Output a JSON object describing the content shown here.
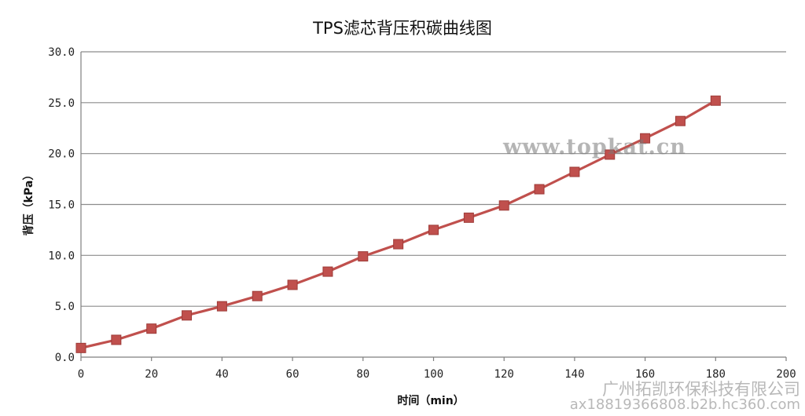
{
  "chart_data": {
    "type": "line",
    "title": "TPS滤芯背压积碳曲线图",
    "xlabel": "时间（min）",
    "ylabel": "背压（kPa）",
    "xlim": [
      0,
      200
    ],
    "ylim": [
      0,
      30
    ],
    "x_ticks": [
      "0",
      "20",
      "40",
      "60",
      "80",
      "100",
      "120",
      "140",
      "160",
      "180",
      "200"
    ],
    "y_ticks": [
      "0.0",
      "5.0",
      "10.0",
      "15.0",
      "20.0",
      "25.0",
      "30.0"
    ],
    "grid": "horizontal",
    "legend": "none",
    "series": [
      {
        "color": "#c0504d",
        "marker": "square",
        "x": [
          0,
          10,
          20,
          30,
          40,
          50,
          60,
          70,
          80,
          90,
          100,
          110,
          120,
          130,
          140,
          150,
          160,
          170,
          180
        ],
        "y": [
          0.9,
          1.7,
          2.8,
          4.1,
          5.0,
          6.0,
          7.1,
          8.4,
          9.9,
          11.1,
          12.5,
          13.7,
          14.9,
          16.5,
          18.2,
          19.9,
          21.5,
          23.2,
          25.2
        ]
      }
    ]
  },
  "watermarks": {
    "site": "www.topkat.cn",
    "company": "广州拓凯环保科技有限公司",
    "url": "ax18819366808.b2b.hc360.com"
  }
}
